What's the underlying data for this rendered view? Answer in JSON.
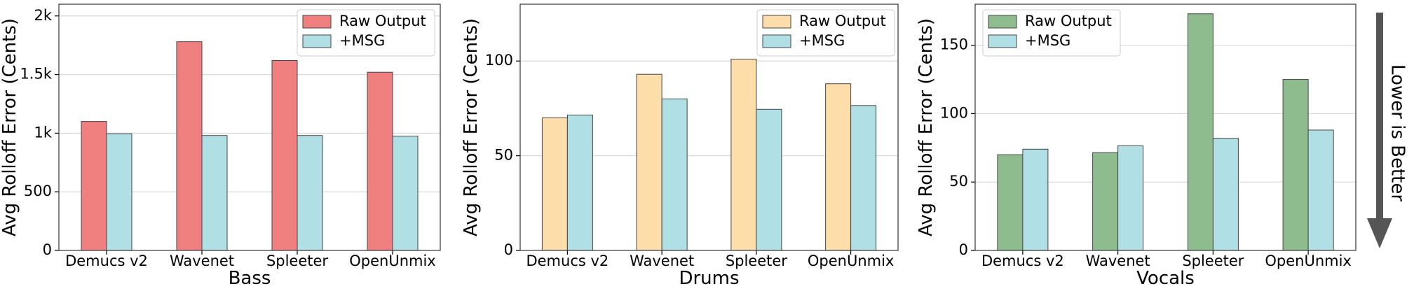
{
  "chart_data": [
    {
      "type": "bar",
      "xlabel": "Bass",
      "ylabel": "Avg Rolloff Error (Cents)",
      "categories": [
        "Demucs v2",
        "Wavenet",
        "Spleeter",
        "OpenUnmix"
      ],
      "ylim": [
        0,
        2100
      ],
      "yticks": [
        0,
        500,
        1000,
        1500,
        2000
      ],
      "ytick_labels": [
        "0",
        "500",
        "1k",
        "1.5k",
        "2k"
      ],
      "grid": "horizontal",
      "legend_position": "top-right",
      "series": [
        {
          "name": "Raw Output",
          "color": "#f08080",
          "values": [
            1100,
            1780,
            1620,
            1520
          ]
        },
        {
          "name": "+MSG",
          "color": "#b0e0e6",
          "values": [
            995,
            980,
            980,
            975
          ]
        }
      ]
    },
    {
      "type": "bar",
      "xlabel": "Drums",
      "ylabel": "Avg Rolloff Error (Cents)",
      "categories": [
        "Demucs v2",
        "Wavenet",
        "Spleeter",
        "OpenUnmix"
      ],
      "ylim": [
        0,
        130
      ],
      "yticks": [
        0,
        50,
        100
      ],
      "ytick_labels": [
        "0",
        "50",
        "100"
      ],
      "grid": "horizontal",
      "legend_position": "top-right",
      "series": [
        {
          "name": "Raw Output",
          "color": "#fddeab",
          "values": [
            70,
            93,
            101,
            88
          ]
        },
        {
          "name": "+MSG",
          "color": "#b0e0e6",
          "values": [
            71.5,
            80,
            74.5,
            76.5
          ]
        }
      ]
    },
    {
      "type": "bar",
      "xlabel": "Vocals",
      "ylabel": "Avg Rolloff Error (Cents)",
      "categories": [
        "Demucs v2",
        "Wavenet",
        "Spleeter",
        "OpenUnmix"
      ],
      "ylim": [
        0,
        180
      ],
      "yticks": [
        0,
        50,
        100,
        150
      ],
      "ytick_labels": [
        "0",
        "50",
        "100",
        "150"
      ],
      "grid": "horizontal",
      "legend_position": "top-left",
      "series": [
        {
          "name": "Raw Output",
          "color": "#8fbc8f",
          "values": [
            70,
            71.5,
            173,
            125
          ]
        },
        {
          "name": "+MSG",
          "color": "#b0e0e6",
          "values": [
            74,
            76.5,
            82,
            88
          ]
        }
      ]
    }
  ],
  "annotation": {
    "text": "Lower is Better",
    "arrow_color": "#555555"
  }
}
